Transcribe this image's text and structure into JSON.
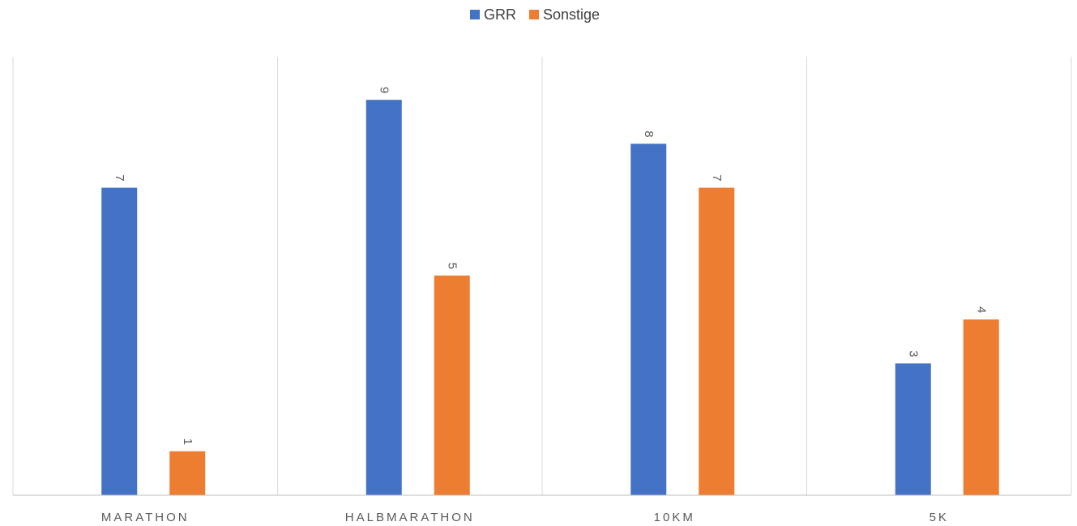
{
  "chart_data": {
    "type": "bar",
    "categories": [
      "MARATHON",
      "HALBMARATHON",
      "10KM",
      "5K"
    ],
    "series": [
      {
        "name": "GRR",
        "values": [
          7,
          9,
          8,
          3
        ],
        "color": "#4472C4"
      },
      {
        "name": "Sonstige",
        "values": [
          1,
          5,
          7,
          4
        ],
        "color": "#ED7D31"
      }
    ],
    "ylim": [
      0,
      10
    ],
    "grid": "vertical category separators",
    "legend_position": "top-center",
    "data_labels": true,
    "data_label_orientation": "rotated"
  }
}
